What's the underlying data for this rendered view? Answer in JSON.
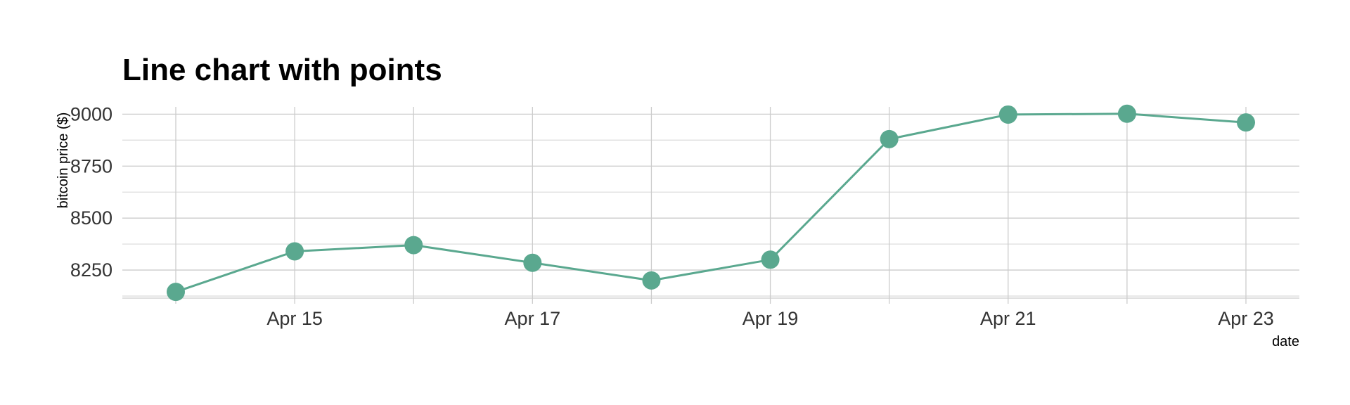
{
  "chart_data": {
    "type": "line",
    "title": "Line chart with points",
    "xlabel": "date",
    "ylabel": "bitcoin price ($)",
    "x": [
      "2018-04-14",
      "2018-04-15",
      "2018-04-16",
      "2018-04-17",
      "2018-04-18",
      "2018-04-19",
      "2018-04-20",
      "2018-04-21",
      "2018-04-22",
      "2018-04-23"
    ],
    "x_tick_labels": [
      {
        "at": "2018-04-15",
        "label": "Apr 15"
      },
      {
        "at": "2018-04-17",
        "label": "Apr 17"
      },
      {
        "at": "2018-04-19",
        "label": "Apr 19"
      },
      {
        "at": "2018-04-21",
        "label": "Apr 21"
      },
      {
        "at": "2018-04-23",
        "label": "Apr 23"
      }
    ],
    "y_ticks": [
      8250,
      8500,
      8750,
      9000
    ],
    "ylim": [
      8115,
      9035
    ],
    "series": [
      {
        "values": [
          8145,
          8340,
          8370,
          8285,
          8200,
          8300,
          8880,
          8998,
          9002,
          8960
        ],
        "color": "#5aa88f",
        "markers": true
      }
    ],
    "grid": true,
    "legend": "none"
  }
}
